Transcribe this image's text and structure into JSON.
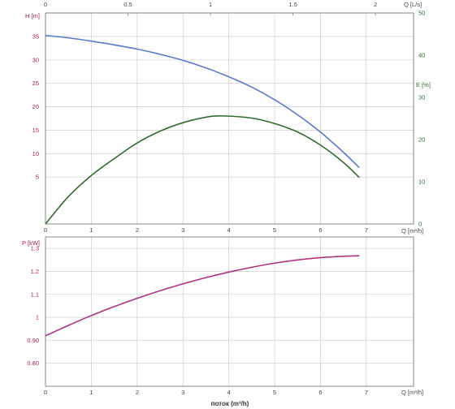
{
  "colors": {
    "head": "#5a78d0",
    "efficiency": "#2e6b2e",
    "power": "#b03080",
    "head_axis_text": "#b02050",
    "power_axis_text": "#b02050",
    "tick_text": "#444444",
    "grid": "#d4d4d4"
  },
  "labels": {
    "head_axis": "H [m]",
    "efficiency_axis": "E [%]",
    "top_flow_axis": "Q [L/s]",
    "flow_axis_top_chart": "Q [m³/h]",
    "power_axis": "P [kW]",
    "flow_axis_bottom_chart": "Q [m³/h]",
    "footer": "поток (m³/h)"
  },
  "chart_data": [
    {
      "type": "line",
      "grid": true,
      "x_axis": {
        "label": "Q [m³/h]",
        "range": [
          0,
          8
        ],
        "ticks": [
          "0",
          "1",
          "2",
          "3",
          "4",
          "5",
          "6",
          "7"
        ]
      },
      "x2_axis": {
        "label": "Q [L/s]",
        "position": "top",
        "ticks": [
          "0",
          "0.5",
          "1",
          "1.5",
          "2"
        ],
        "tick_values": [
          0,
          0.5,
          1,
          1.5,
          2
        ]
      },
      "y_axis": {
        "label": "H [m]",
        "range": [
          -5,
          40
        ],
        "ticks": [
          "5",
          "10",
          "15",
          "20",
          "25",
          "30",
          "35"
        ],
        "tick_values": [
          5,
          10,
          15,
          20,
          25,
          30,
          35
        ]
      },
      "y2_axis": {
        "label": "E [%]",
        "position": "right",
        "range": [
          0,
          50
        ],
        "ticks": [
          "0",
          "10",
          "20",
          "30",
          "40",
          "50"
        ],
        "tick_values": [
          0,
          10,
          20,
          30,
          40,
          50
        ]
      },
      "series": [
        {
          "axis": "y",
          "x": [
            0,
            0.5,
            1,
            1.5,
            2,
            2.5,
            3,
            3.5,
            4,
            4.5,
            5,
            5.5,
            6,
            6.5,
            6.85
          ],
          "values": [
            35.2,
            34.7,
            34.0,
            33.2,
            32.3,
            31.2,
            29.9,
            28.3,
            26.4,
            24.2,
            21.5,
            18.3,
            14.6,
            10.3,
            7.0
          ]
        },
        {
          "axis": "y2",
          "x": [
            0,
            0.5,
            1,
            1.5,
            2,
            2.5,
            3,
            3.5,
            3.85,
            4.5,
            5,
            5.5,
            6,
            6.5,
            6.85
          ],
          "values": [
            0,
            6.5,
            11.5,
            15.5,
            19.2,
            22.0,
            24.0,
            25.3,
            25.6,
            25.1,
            23.8,
            21.8,
            18.7,
            14.6,
            11.0
          ]
        }
      ]
    },
    {
      "type": "line",
      "grid": true,
      "x_axis": {
        "label": "Q [m³/h]",
        "range": [
          0,
          8
        ],
        "ticks": [
          "0",
          "1",
          "2",
          "3",
          "4",
          "5",
          "6",
          "7"
        ]
      },
      "y_axis": {
        "label": "P [kW]",
        "range": [
          0.7,
          1.35
        ],
        "ticks": [
          "0.80",
          "0.90",
          "1",
          "1.1",
          "1.2",
          "1.3"
        ],
        "tick_values": [
          0.8,
          0.9,
          1.0,
          1.1,
          1.2,
          1.3
        ]
      },
      "series": [
        {
          "axis": "y",
          "x": [
            0,
            0.5,
            1,
            1.5,
            2,
            2.5,
            3,
            3.5,
            4,
            4.5,
            5,
            5.5,
            6,
            6.5,
            6.85
          ],
          "values": [
            0.92,
            0.965,
            1.008,
            1.047,
            1.083,
            1.116,
            1.146,
            1.173,
            1.197,
            1.218,
            1.236,
            1.25,
            1.26,
            1.266,
            1.268
          ]
        }
      ]
    }
  ]
}
